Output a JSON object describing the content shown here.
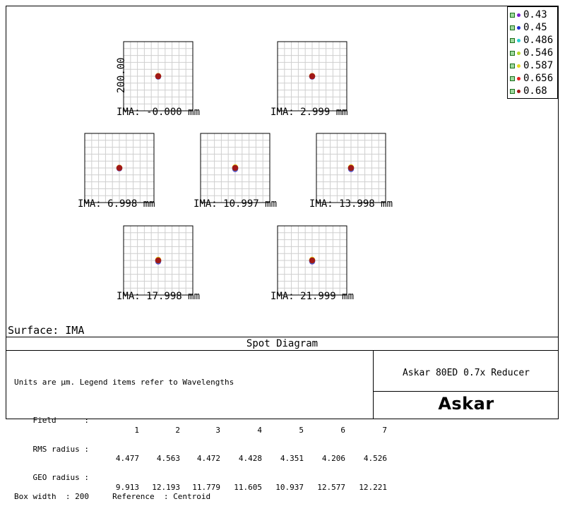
{
  "chart_data": {
    "type": "scatter",
    "title": "Spot Diagram",
    "surface": "Surface: IMA",
    "box_scale_label": "200.00",
    "wavelengths": [
      {
        "label": "0.43",
        "color": "#7b1fd0"
      },
      {
        "label": "0.45",
        "color": "#1f2fd0"
      },
      {
        "label": "0.486",
        "color": "#2ad0d0"
      },
      {
        "label": "0.546",
        "color": "#b8d82a"
      },
      {
        "label": "0.587",
        "color": "#e8d820"
      },
      {
        "label": "0.656",
        "color": "#e02020"
      },
      {
        "label": "0.68",
        "color": "#a01818"
      }
    ],
    "fields": [
      {
        "label": "IMA: -0.000 mm",
        "spots": [
          {
            "dx": 0,
            "dy": 0
          }
        ]
      },
      {
        "label": "IMA: 2.999 mm",
        "spots": [
          {
            "dx": 0,
            "dy": 0
          }
        ]
      },
      {
        "label": "IMA: 6.998 mm",
        "spots": [
          {
            "dx": 0,
            "dy": 0
          }
        ]
      },
      {
        "label": "IMA: 10.997 mm",
        "spots": [
          {
            "dx": 0,
            "dy": 0
          }
        ]
      },
      {
        "label": "IMA: 13.998 mm",
        "spots": [
          {
            "dx": 0,
            "dy": 0
          }
        ]
      },
      {
        "label": "IMA: 17.998 mm",
        "spots": [
          {
            "dx": 0,
            "dy": 0
          }
        ]
      },
      {
        "label": "IMA: 21.999 mm",
        "spots": [
          {
            "dx": 0,
            "dy": 0
          }
        ]
      }
    ],
    "box_width_um": 200,
    "grid": true
  },
  "info": {
    "line1": "Units are µm. Legend items refer to Wavelengths",
    "field_label": "Field      :",
    "rms_label": "RMS radius :",
    "geo_label": "GEO radius :",
    "field_numbers": [
      "1",
      "2",
      "3",
      "4",
      "5",
      "6",
      "7"
    ],
    "rms_radius": [
      "4.477",
      "4.563",
      "4.472",
      "4.428",
      "4.351",
      "4.206",
      "4.526"
    ],
    "geo_radius": [
      "9.913",
      "12.193",
      "11.779",
      "11.605",
      "10.937",
      "12.577",
      "12.221"
    ],
    "footer": "Box width  : 200     Reference  : Centroid"
  },
  "lens_name": "Askar 80ED 0.7x Reducer",
  "logo": "Askar"
}
